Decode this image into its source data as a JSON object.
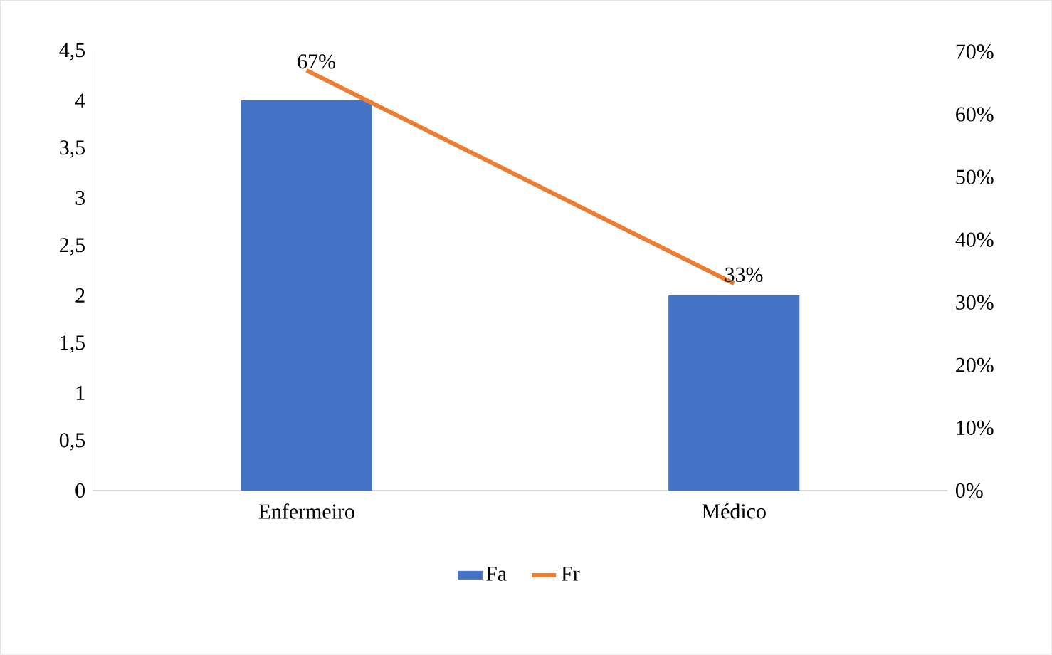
{
  "chart_data": {
    "type": "bar",
    "categories": [
      "Enfermeiro",
      "Médico"
    ],
    "series": [
      {
        "name": "Fa",
        "color": "#4472c4",
        "values": [
          4,
          2
        ]
      },
      {
        "name": "Fr",
        "type": "line",
        "axis": "y2",
        "color": "#ed7d31",
        "values": [
          67,
          33
        ],
        "value_labels": [
          "67%",
          "33%"
        ]
      }
    ],
    "ylim": [
      0,
      4.5
    ],
    "yticks": [
      0,
      {
        "value": 0.5,
        "label": "0,5"
      },
      1,
      {
        "value": 1.5,
        "label": "1,5"
      },
      2,
      {
        "value": 2.5,
        "label": "2,5"
      },
      3,
      {
        "value": 3.5,
        "label": "3,5"
      },
      4,
      {
        "value": 4.5,
        "label": "4,5"
      }
    ],
    "y2lim": [
      0,
      70
    ],
    "y2ticks": [
      {
        "value": 0,
        "label": "0%"
      },
      {
        "value": 10,
        "label": "10%"
      },
      {
        "value": 20,
        "label": "20%"
      },
      {
        "value": 30,
        "label": "30%"
      },
      {
        "value": 40,
        "label": "40%"
      },
      {
        "value": 50,
        "label": "50%"
      },
      {
        "value": 60,
        "label": "60%"
      },
      {
        "value": 70,
        "label": "70%"
      }
    ],
    "grid": false,
    "legend": "bottom",
    "marker": "none",
    "line_style": "solid"
  }
}
